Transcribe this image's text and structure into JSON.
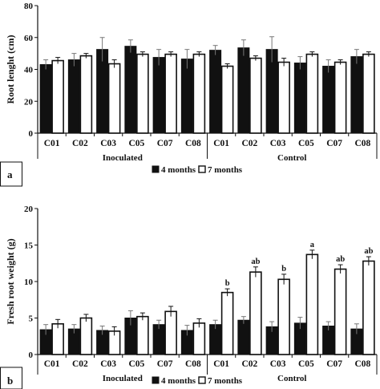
{
  "chart_data": [
    {
      "panel_label": "a",
      "type": "bar",
      "ylabel": "Root lenght (cm)",
      "ylim": [
        0,
        80
      ],
      "yticks": [
        0,
        20,
        40,
        60,
        80
      ],
      "grid": false,
      "groups": [
        {
          "name": "Inoculated",
          "categories": [
            "C01",
            "C02",
            "C03",
            "C05",
            "C07",
            "C08"
          ]
        },
        {
          "name": "Control",
          "categories": [
            "C01",
            "C02",
            "C03",
            "C05",
            "C07",
            "C08"
          ]
        }
      ],
      "series": [
        {
          "name": "4 months",
          "color": "#111111",
          "values": [
            43,
            46,
            52.5,
            54.5,
            47.5,
            46.5,
            52,
            53.5,
            52.5,
            44,
            42,
            48
          ],
          "errors": [
            3,
            4,
            7.5,
            4,
            5,
            6,
            3,
            5,
            8,
            4,
            4,
            4.5
          ]
        },
        {
          "name": "7 months",
          "color": "#ffffff",
          "values": [
            45.5,
            48.5,
            43.5,
            49.5,
            49.5,
            49.5,
            42,
            47,
            44.5,
            49.5,
            44.5,
            49.5
          ],
          "errors": [
            2,
            1.5,
            2.5,
            1.5,
            1.5,
            1.5,
            1.5,
            1.5,
            2.5,
            1.5,
            1.5,
            1.5
          ]
        }
      ],
      "significance": [
        "",
        "",
        "",
        "",
        "",
        "",
        "",
        "",
        "",
        "",
        "",
        ""
      ],
      "legend": {
        "position": "bottom"
      }
    },
    {
      "panel_label": "b",
      "type": "bar",
      "ylabel": "Fresh root weight (g)",
      "ylim": [
        0,
        20
      ],
      "yticks": [
        0,
        5,
        10,
        15,
        20
      ],
      "grid": false,
      "groups": [
        {
          "name": "Inoculated",
          "categories": [
            "C01",
            "C02",
            "C03",
            "C05",
            "C07",
            "C08"
          ]
        },
        {
          "name": "Control",
          "categories": [
            "C01",
            "C02",
            "C03",
            "C05",
            "C07",
            "C08"
          ]
        }
      ],
      "series": [
        {
          "name": "4 months",
          "color": "#111111",
          "values": [
            3.4,
            3.5,
            3.3,
            5.0,
            4.1,
            3.3,
            4.1,
            4.7,
            3.8,
            4.3,
            3.9,
            3.5
          ],
          "errors": [
            0.7,
            0.6,
            0.6,
            1.0,
            0.6,
            0.7,
            0.6,
            0.5,
            0.7,
            0.8,
            0.6,
            0.7
          ]
        },
        {
          "name": "7 months",
          "color": "#ffffff",
          "values": [
            4.2,
            5.0,
            3.2,
            5.2,
            5.9,
            4.3,
            8.5,
            11.3,
            10.3,
            13.7,
            11.7,
            12.8
          ],
          "errors": [
            0.6,
            0.5,
            0.6,
            0.5,
            0.7,
            0.6,
            0.5,
            0.7,
            0.7,
            0.6,
            0.6,
            0.6
          ]
        }
      ],
      "significance": [
        "",
        "",
        "",
        "",
        "",
        "",
        "b",
        "ab",
        "b",
        "a",
        "ab",
        "ab"
      ],
      "legend": {
        "position": "bottom"
      }
    }
  ]
}
